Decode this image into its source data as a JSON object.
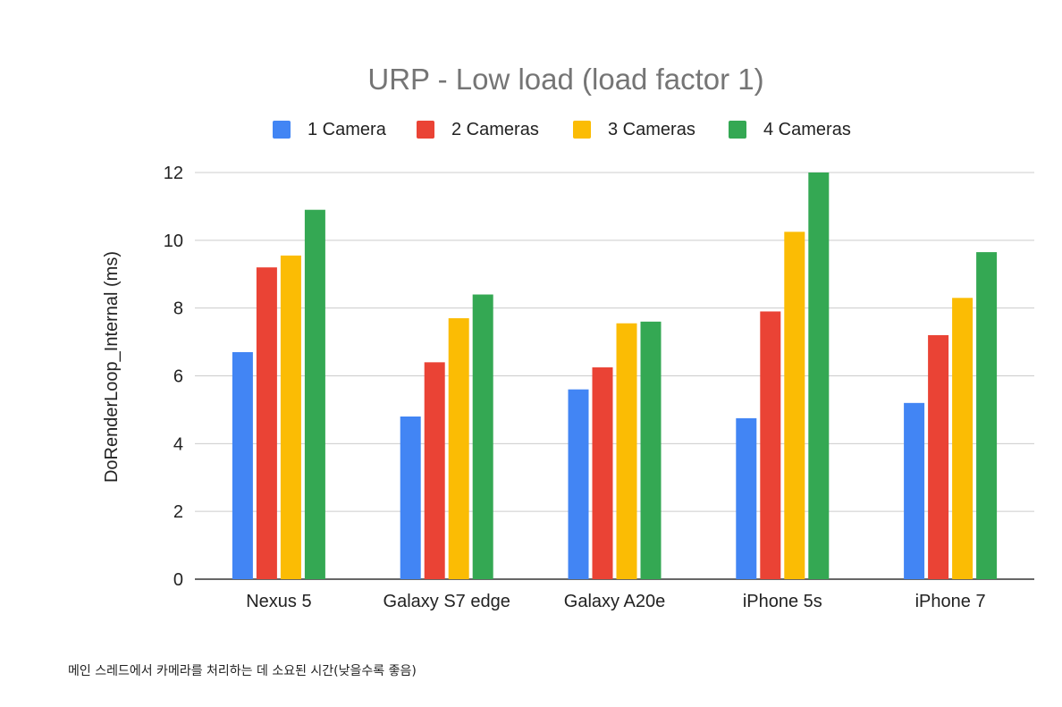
{
  "chart_data": {
    "type": "bar",
    "title": "URP - Low load (load factor 1)",
    "xlabel": "",
    "ylabel": "DoRenderLoop_Internal (ms)",
    "ylim": [
      0,
      12
    ],
    "yticks": [
      0,
      2,
      4,
      6,
      8,
      10,
      12
    ],
    "grid": true,
    "legend_position": "top",
    "categories": [
      "Nexus 5",
      "Galaxy S7 edge",
      "Galaxy A20e",
      "iPhone 5s",
      "iPhone 7"
    ],
    "series": [
      {
        "name": "1 Camera",
        "color": "#4285F4",
        "values": [
          6.7,
          4.8,
          5.6,
          4.75,
          5.2
        ]
      },
      {
        "name": "2 Cameras",
        "color": "#EA4335",
        "values": [
          9.2,
          6.4,
          6.25,
          7.9,
          7.2
        ]
      },
      {
        "name": "3 Cameras",
        "color": "#FBBC04",
        "values": [
          9.55,
          7.7,
          7.55,
          10.25,
          8.3
        ]
      },
      {
        "name": "4 Cameras",
        "color": "#34A853",
        "values": [
          10.9,
          8.4,
          7.6,
          12.0,
          9.65
        ]
      }
    ]
  },
  "caption": "메인 스레드에서 카메라를 처리하는 데 소요된 시간(낮을수록 좋음)"
}
